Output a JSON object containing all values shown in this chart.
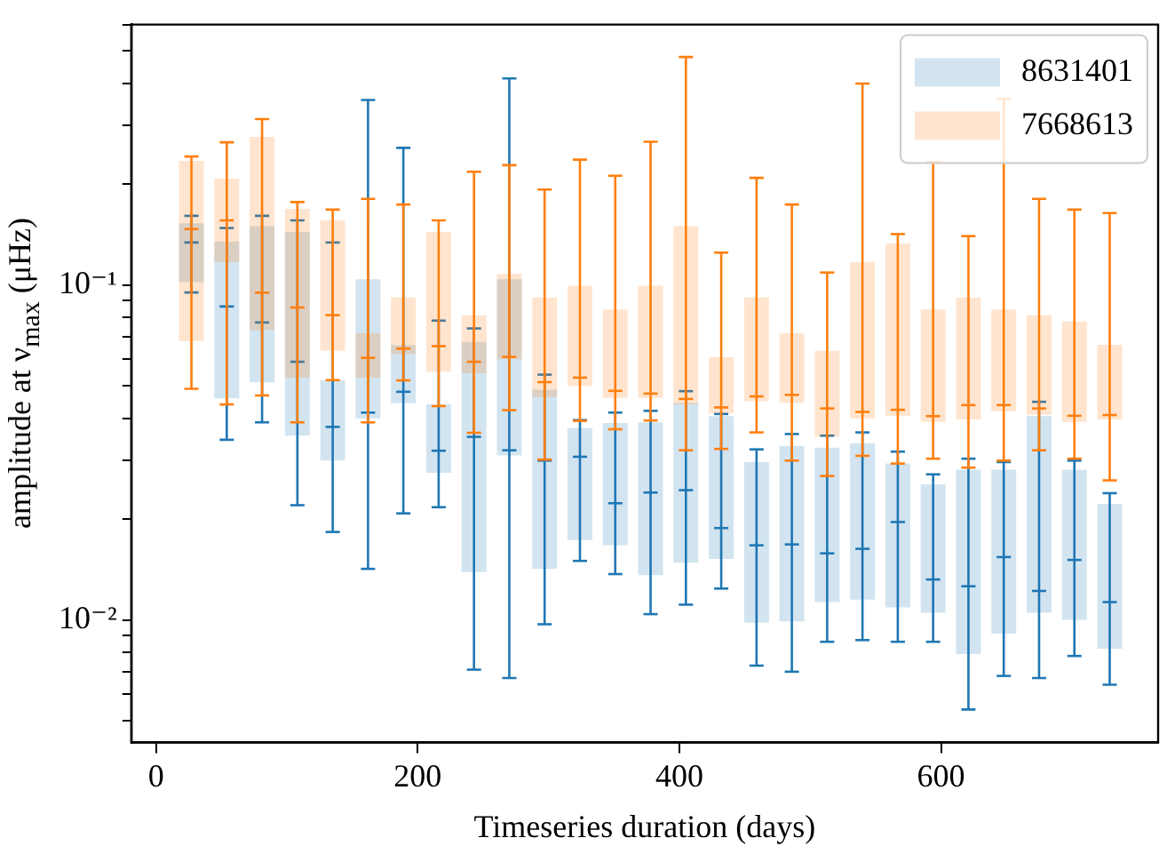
{
  "chart_data": {
    "type": "box",
    "xlabel": "Timeseries duration (days)",
    "ylabel": "amplitude at ν$_{max}$ (μHz)",
    "log": true,
    "legend": "top right",
    "x": [
      27,
      54,
      81,
      108,
      135,
      162,
      189,
      216,
      243,
      270,
      297,
      324,
      351,
      378,
      405,
      432,
      459,
      486,
      513,
      540,
      567,
      594,
      621,
      648,
      675,
      702,
      729
    ],
    "xlim": [
      -19,
      766
    ],
    "xticks": [
      0,
      200,
      400,
      600
    ],
    "ylim": [
      0.0043,
      0.6
    ],
    "yticks": [
      {
        "value": 0.005,
        "label": null
      },
      {
        "value": 0.006,
        "label": null
      },
      {
        "value": 0.007,
        "label": null
      },
      {
        "value": 0.008,
        "label": null
      },
      {
        "value": 0.009,
        "label": null
      },
      {
        "value": 0.01,
        "label": "10⁻²"
      },
      {
        "value": 0.02,
        "label": null
      },
      {
        "value": 0.03,
        "label": null
      },
      {
        "value": 0.04,
        "label": null
      },
      {
        "value": 0.05,
        "label": null
      },
      {
        "value": 0.06,
        "label": null
      },
      {
        "value": 0.07,
        "label": null
      },
      {
        "value": 0.08,
        "label": null
      },
      {
        "value": 0.09,
        "label": null
      },
      {
        "value": 0.1,
        "label": "10⁻¹"
      },
      {
        "value": 0.2,
        "label": null
      },
      {
        "value": 0.3,
        "label": null
      },
      {
        "value": 0.4,
        "label": null
      },
      {
        "value": 0.5,
        "label": null
      },
      {
        "value": 0.6,
        "label": null
      }
    ],
    "series": [
      {
        "name": "8631401",
        "color": "#1f77b4",
        "boxes": [
          {
            "low": 0.095,
            "q1": 0.102,
            "median": 0.134,
            "q3": 0.153,
            "high": 0.161
          },
          {
            "low": 0.0345,
            "q1": 0.0459,
            "median": 0.0863,
            "q3": 0.135,
            "high": 0.148
          },
          {
            "low": 0.0389,
            "q1": 0.0512,
            "median": 0.0773,
            "q3": 0.15,
            "high": 0.161
          },
          {
            "low": 0.022,
            "q1": 0.0355,
            "median": 0.059,
            "q3": 0.144,
            "high": 0.156
          },
          {
            "low": 0.0183,
            "q1": 0.0299,
            "median": 0.0377,
            "q3": 0.0519,
            "high": 0.134
          },
          {
            "low": 0.0142,
            "q1": 0.04,
            "median": 0.0416,
            "q3": 0.104,
            "high": 0.357
          },
          {
            "low": 0.0208,
            "q1": 0.0444,
            "median": 0.048,
            "q3": 0.0662,
            "high": 0.257
          },
          {
            "low": 0.0217,
            "q1": 0.0275,
            "median": 0.032,
            "q3": 0.044,
            "high": 0.0783
          },
          {
            "low": 0.0071,
            "q1": 0.0139,
            "median": 0.0352,
            "q3": 0.0676,
            "high": 0.0742
          },
          {
            "low": 0.0067,
            "q1": 0.031,
            "median": 0.0321,
            "q3": 0.104,
            "high": 0.414
          },
          {
            "low": 0.0097,
            "q1": 0.0142,
            "median": 0.0299,
            "q3": 0.0487,
            "high": 0.054
          },
          {
            "low": 0.015,
            "q1": 0.0173,
            "median": 0.0307,
            "q3": 0.0374,
            "high": 0.0395
          },
          {
            "low": 0.0137,
            "q1": 0.0167,
            "median": 0.0223,
            "q3": 0.0387,
            "high": 0.0416
          },
          {
            "low": 0.0104,
            "q1": 0.0136,
            "median": 0.024,
            "q3": 0.0389,
            "high": 0.0421
          },
          {
            "low": 0.0111,
            "q1": 0.0148,
            "median": 0.0244,
            "q3": 0.0444,
            "high": 0.0482
          },
          {
            "low": 0.0124,
            "q1": 0.0152,
            "median": 0.0188,
            "q3": 0.0406,
            "high": 0.0412
          },
          {
            "low": 0.0073,
            "q1": 0.0098,
            "median": 0.0167,
            "q3": 0.0296,
            "high": 0.0323
          },
          {
            "low": 0.007,
            "q1": 0.0099,
            "median": 0.0168,
            "q3": 0.0331,
            "high": 0.0359
          },
          {
            "low": 0.0086,
            "q1": 0.0113,
            "median": 0.0158,
            "q3": 0.0327,
            "high": 0.0355
          },
          {
            "low": 0.0087,
            "q1": 0.0115,
            "median": 0.0163,
            "q3": 0.0337,
            "high": 0.0363
          },
          {
            "low": 0.0086,
            "q1": 0.0109,
            "median": 0.0196,
            "q3": 0.0293,
            "high": 0.0318
          },
          {
            "low": 0.0086,
            "q1": 0.0105,
            "median": 0.0132,
            "q3": 0.0254,
            "high": 0.0272
          },
          {
            "low": 0.0054,
            "q1": 0.0079,
            "median": 0.0126,
            "q3": 0.0281,
            "high": 0.0303
          },
          {
            "low": 0.0068,
            "q1": 0.0091,
            "median": 0.0154,
            "q3": 0.0281,
            "high": 0.0296
          },
          {
            "low": 0.0067,
            "q1": 0.0105,
            "median": 0.0122,
            "q3": 0.0406,
            "high": 0.0448
          },
          {
            "low": 0.0078,
            "q1": 0.01,
            "median": 0.0151,
            "q3": 0.0281,
            "high": 0.0299
          },
          {
            "low": 0.0064,
            "q1": 0.0082,
            "median": 0.0113,
            "q3": 0.0222,
            "high": 0.0239
          }
        ]
      },
      {
        "name": "7668613",
        "color": "#ff7f0e",
        "boxes": [
          {
            "low": 0.049,
            "q1": 0.068,
            "median": 0.147,
            "q3": 0.235,
            "high": 0.242
          },
          {
            "low": 0.044,
            "q1": 0.117,
            "median": 0.156,
            "q3": 0.208,
            "high": 0.267
          },
          {
            "low": 0.0468,
            "q1": 0.0733,
            "median": 0.0949,
            "q3": 0.277,
            "high": 0.313
          },
          {
            "low": 0.0389,
            "q1": 0.0529,
            "median": 0.0857,
            "q3": 0.169,
            "high": 0.177
          },
          {
            "low": 0.052,
            "q1": 0.0636,
            "median": 0.0813,
            "q3": 0.156,
            "high": 0.168
          },
          {
            "low": 0.0389,
            "q1": 0.0529,
            "median": 0.0606,
            "q3": 0.0719,
            "high": 0.181
          },
          {
            "low": 0.0519,
            "q1": 0.0622,
            "median": 0.0646,
            "q3": 0.0918,
            "high": 0.174
          },
          {
            "low": 0.0435,
            "q1": 0.0551,
            "median": 0.0657,
            "q3": 0.144,
            "high": 0.156
          },
          {
            "low": 0.0362,
            "q1": 0.0545,
            "median": 0.059,
            "q3": 0.0813,
            "high": 0.218
          },
          {
            "low": 0.0423,
            "q1": 0.06,
            "median": 0.061,
            "q3": 0.108,
            "high": 0.228
          },
          {
            "low": 0.0301,
            "q1": 0.0463,
            "median": 0.0513,
            "q3": 0.0918,
            "high": 0.193
          },
          {
            "low": 0.0393,
            "q1": 0.05,
            "median": 0.0529,
            "q3": 0.0996,
            "high": 0.237
          },
          {
            "low": 0.0371,
            "q1": 0.046,
            "median": 0.0483,
            "q3": 0.0846,
            "high": 0.212
          },
          {
            "low": 0.0394,
            "q1": 0.046,
            "median": 0.0474,
            "q3": 0.0996,
            "high": 0.268
          },
          {
            "low": 0.0321,
            "q1": 0.044,
            "median": 0.0457,
            "q3": 0.15,
            "high": 0.48
          },
          {
            "low": 0.0324,
            "q1": 0.0414,
            "median": 0.0431,
            "q3": 0.061,
            "high": 0.125
          },
          {
            "low": 0.0363,
            "q1": 0.045,
            "median": 0.0465,
            "q3": 0.0918,
            "high": 0.209
          },
          {
            "low": 0.0299,
            "q1": 0.0444,
            "median": 0.047,
            "q3": 0.0719,
            "high": 0.174
          },
          {
            "low": 0.0269,
            "q1": 0.0352,
            "median": 0.0428,
            "q3": 0.0636,
            "high": 0.109
          },
          {
            "low": 0.0309,
            "q1": 0.04,
            "median": 0.0418,
            "q3": 0.117,
            "high": 0.4
          },
          {
            "low": 0.0293,
            "q1": 0.0406,
            "median": 0.0424,
            "q3": 0.133,
            "high": 0.142
          },
          {
            "low": 0.0303,
            "q1": 0.039,
            "median": 0.0406,
            "q3": 0.0846,
            "high": 0.233
          },
          {
            "low": 0.0285,
            "q1": 0.0397,
            "median": 0.0438,
            "q3": 0.0918,
            "high": 0.14
          },
          {
            "low": 0.0299,
            "q1": 0.042,
            "median": 0.0438,
            "q3": 0.0846,
            "high": 0.36
          },
          {
            "low": 0.0321,
            "q1": 0.041,
            "median": 0.0428,
            "q3": 0.0813,
            "high": 0.181
          },
          {
            "low": 0.0303,
            "q1": 0.039,
            "median": 0.0407,
            "q3": 0.0779,
            "high": 0.168
          },
          {
            "low": 0.0261,
            "q1": 0.0397,
            "median": 0.0409,
            "q3": 0.0663,
            "high": 0.164
          }
        ]
      }
    ]
  }
}
